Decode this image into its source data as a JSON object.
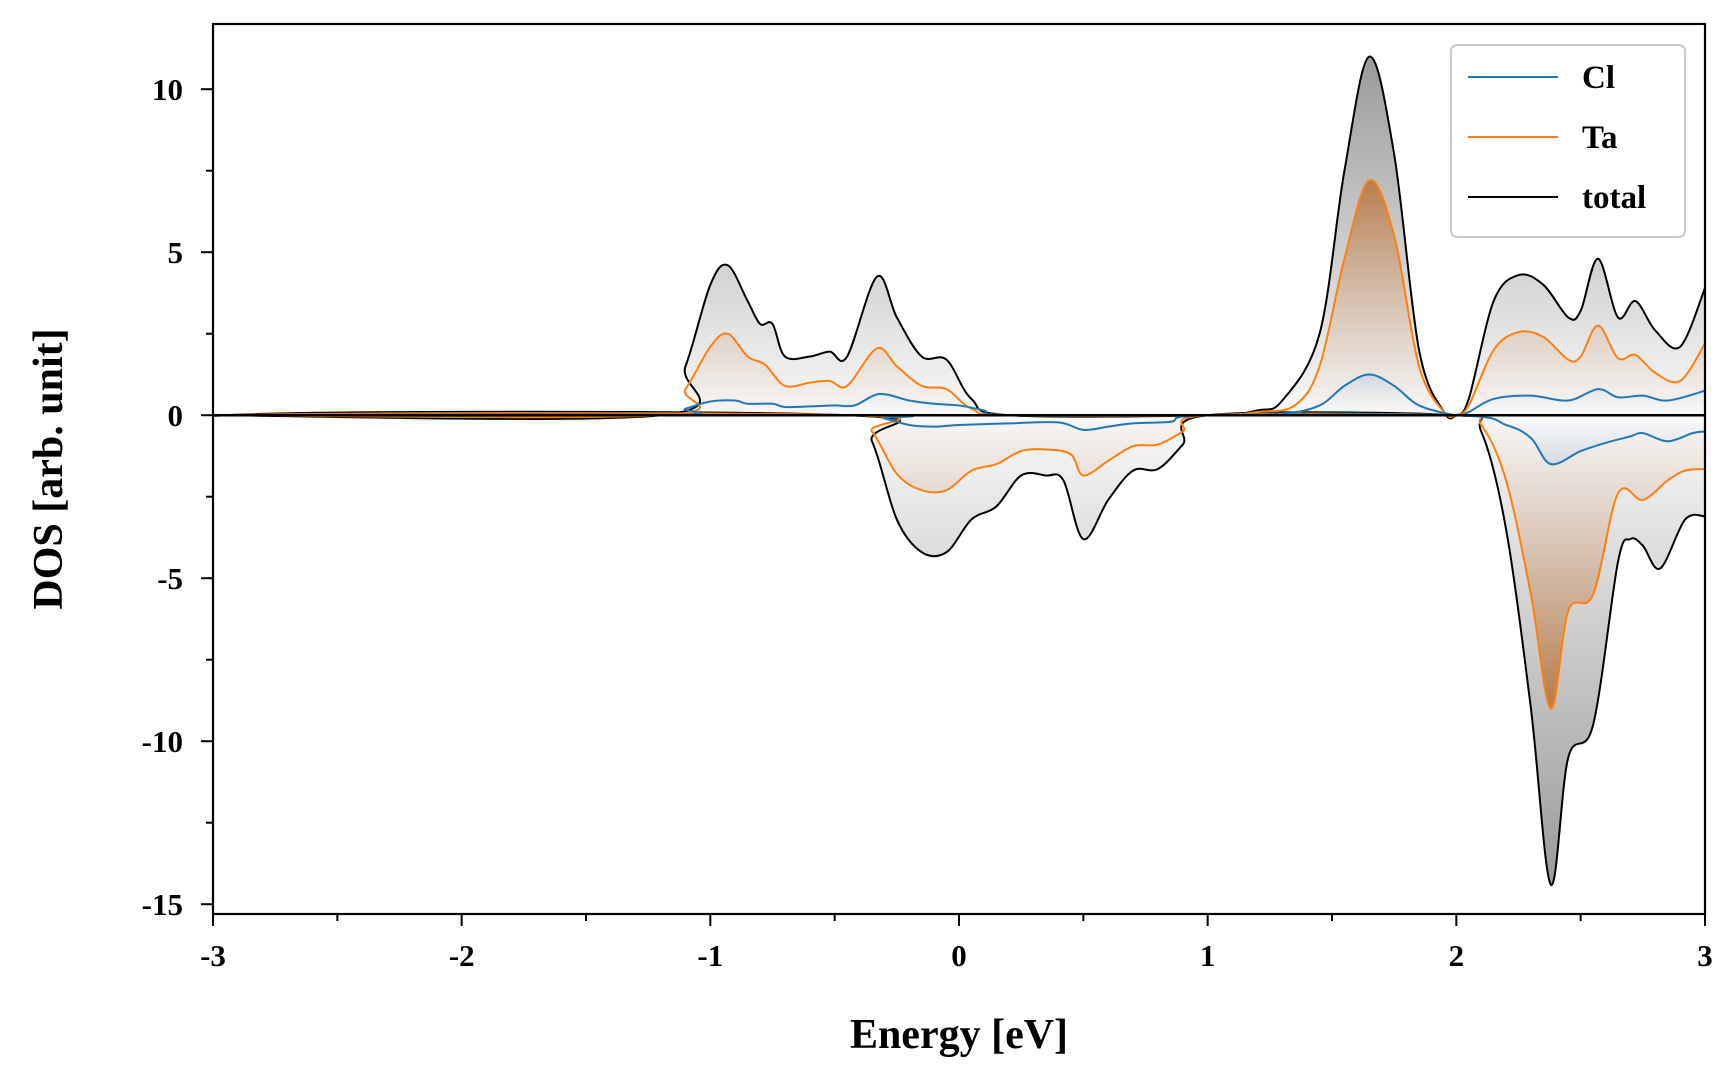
{
  "chart_data": {
    "type": "line",
    "title": "",
    "xlabel": "Energy [eV]",
    "ylabel": "DOS [arb. unit]",
    "xlim": [
      -3,
      3
    ],
    "ylim": [
      -15.3,
      12
    ],
    "x_ticks": [
      -3,
      -2,
      -1,
      0,
      1,
      2,
      3
    ],
    "x_tick_labels": [
      "-3",
      "-2",
      "-1",
      "0",
      "1",
      "2",
      "3"
    ],
    "x_minor_step": 0.5,
    "y_ticks": [
      -15,
      -10,
      -5,
      0,
      5,
      10
    ],
    "y_tick_labels": [
      "-15",
      "-10",
      "-5",
      "0",
      "5",
      "10"
    ],
    "y_minor_step": 2.5,
    "grid": false,
    "legend_position": "top-right",
    "fill": "gradient under spin-up and spin-down curves",
    "series": [
      {
        "name": "Cl",
        "color": "#1f77b4",
        "spin_up": [
          [
            -3,
            0.1
          ],
          [
            -2.95,
            0
          ],
          [
            -1.2,
            0
          ],
          [
            -1.1,
            0.2
          ],
          [
            -1.0,
            0.42
          ],
          [
            -0.9,
            0.45
          ],
          [
            -0.85,
            0.35
          ],
          [
            -0.75,
            0.35
          ],
          [
            -0.7,
            0.25
          ],
          [
            -0.6,
            0.27
          ],
          [
            -0.5,
            0.3
          ],
          [
            -0.42,
            0.3
          ],
          [
            -0.32,
            0.65
          ],
          [
            -0.2,
            0.45
          ],
          [
            -0.1,
            0.35
          ],
          [
            0,
            0.3
          ],
          [
            0.1,
            0.15
          ],
          [
            0.2,
            0
          ],
          [
            1.0,
            0
          ],
          [
            1.3,
            0.05
          ],
          [
            1.45,
            0.3
          ],
          [
            1.55,
            0.9
          ],
          [
            1.65,
            1.25
          ],
          [
            1.75,
            0.9
          ],
          [
            1.85,
            0.3
          ],
          [
            2.0,
            0
          ],
          [
            2.05,
            0.1
          ],
          [
            2.15,
            0.5
          ],
          [
            2.3,
            0.6
          ],
          [
            2.45,
            0.45
          ],
          [
            2.57,
            0.8
          ],
          [
            2.65,
            0.55
          ],
          [
            2.75,
            0.6
          ],
          [
            2.85,
            0.45
          ],
          [
            3.0,
            0.75
          ]
        ],
        "spin_down": [
          [
            -3,
            -0.3
          ],
          [
            -2.95,
            0
          ],
          [
            -0.4,
            0
          ],
          [
            -0.3,
            -0.1
          ],
          [
            -0.2,
            -0.3
          ],
          [
            -0.1,
            -0.35
          ],
          [
            0,
            -0.3
          ],
          [
            0.2,
            -0.25
          ],
          [
            0.4,
            -0.22
          ],
          [
            0.5,
            -0.45
          ],
          [
            0.6,
            -0.35
          ],
          [
            0.7,
            -0.25
          ],
          [
            0.85,
            -0.2
          ],
          [
            1.0,
            0
          ],
          [
            2.0,
            0
          ],
          [
            2.2,
            -0.3
          ],
          [
            2.3,
            -0.7
          ],
          [
            2.38,
            -1.5
          ],
          [
            2.5,
            -1.1
          ],
          [
            2.6,
            -0.85
          ],
          [
            2.7,
            -0.65
          ],
          [
            2.75,
            -0.55
          ],
          [
            2.85,
            -0.8
          ],
          [
            2.95,
            -0.55
          ],
          [
            3.0,
            -0.5
          ]
        ]
      },
      {
        "name": "Ta",
        "color": "#ff7f0e",
        "spin_up": [
          [
            -3,
            0.05
          ],
          [
            -2.95,
            0
          ],
          [
            -1.2,
            0
          ],
          [
            -1.1,
            0.8
          ],
          [
            -1.0,
            2.1
          ],
          [
            -0.93,
            2.5
          ],
          [
            -0.85,
            1.8
          ],
          [
            -0.78,
            1.55
          ],
          [
            -0.7,
            0.9
          ],
          [
            -0.6,
            1.0
          ],
          [
            -0.52,
            1.05
          ],
          [
            -0.45,
            0.9
          ],
          [
            -0.33,
            2.05
          ],
          [
            -0.25,
            1.5
          ],
          [
            -0.15,
            0.9
          ],
          [
            -0.05,
            0.8
          ],
          [
            0.05,
            0.2
          ],
          [
            0.2,
            0
          ],
          [
            1.0,
            0
          ],
          [
            1.2,
            0.1
          ],
          [
            1.35,
            0.3
          ],
          [
            1.45,
            1.5
          ],
          [
            1.55,
            4.8
          ],
          [
            1.65,
            7.2
          ],
          [
            1.75,
            5.5
          ],
          [
            1.85,
            1.5
          ],
          [
            1.95,
            0.1
          ],
          [
            2.0,
            0
          ],
          [
            2.05,
            0.3
          ],
          [
            2.15,
            2.0
          ],
          [
            2.25,
            2.55
          ],
          [
            2.35,
            2.4
          ],
          [
            2.45,
            1.7
          ],
          [
            2.5,
            1.8
          ],
          [
            2.57,
            2.75
          ],
          [
            2.65,
            1.75
          ],
          [
            2.72,
            1.85
          ],
          [
            2.8,
            1.3
          ],
          [
            2.9,
            1.05
          ],
          [
            3.0,
            2.2
          ]
        ],
        "spin_down": [
          [
            -3,
            -0.5
          ],
          [
            -2.95,
            0
          ],
          [
            -0.45,
            0
          ],
          [
            -0.35,
            -0.5
          ],
          [
            -0.25,
            -1.8
          ],
          [
            -0.15,
            -2.3
          ],
          [
            -0.05,
            -2.3
          ],
          [
            0.05,
            -1.7
          ],
          [
            0.15,
            -1.5
          ],
          [
            0.25,
            -1.1
          ],
          [
            0.35,
            -1.05
          ],
          [
            0.45,
            -1.2
          ],
          [
            0.5,
            -1.85
          ],
          [
            0.6,
            -1.4
          ],
          [
            0.7,
            -0.95
          ],
          [
            0.8,
            -0.9
          ],
          [
            0.9,
            -0.5
          ],
          [
            1.0,
            0
          ],
          [
            2.0,
            0
          ],
          [
            2.1,
            -0.3
          ],
          [
            2.2,
            -2.0
          ],
          [
            2.3,
            -5.5
          ],
          [
            2.38,
            -9.0
          ],
          [
            2.45,
            -6.0
          ],
          [
            2.55,
            -5.5
          ],
          [
            2.65,
            -2.4
          ],
          [
            2.75,
            -2.6
          ],
          [
            2.85,
            -2.0
          ],
          [
            2.92,
            -1.7
          ],
          [
            3.0,
            -1.65
          ]
        ]
      },
      {
        "name": "total",
        "color": "#000000",
        "spin_up": [
          [
            -3,
            0.1
          ],
          [
            -2.95,
            0
          ],
          [
            -1.2,
            0
          ],
          [
            -1.1,
            1.5
          ],
          [
            -1.0,
            4.0
          ],
          [
            -0.93,
            4.6
          ],
          [
            -0.85,
            3.5
          ],
          [
            -0.8,
            2.8
          ],
          [
            -0.75,
            2.8
          ],
          [
            -0.7,
            1.8
          ],
          [
            -0.6,
            1.8
          ],
          [
            -0.52,
            1.95
          ],
          [
            -0.45,
            1.8
          ],
          [
            -0.33,
            4.25
          ],
          [
            -0.25,
            3.0
          ],
          [
            -0.15,
            1.8
          ],
          [
            -0.05,
            1.7
          ],
          [
            0.05,
            0.5
          ],
          [
            0.2,
            0
          ],
          [
            1.0,
            0
          ],
          [
            1.2,
            0.15
          ],
          [
            1.3,
            0.45
          ],
          [
            1.45,
            2.5
          ],
          [
            1.55,
            7.5
          ],
          [
            1.65,
            11.0
          ],
          [
            1.75,
            8.0
          ],
          [
            1.85,
            2.0
          ],
          [
            1.95,
            0.1
          ],
          [
            2.0,
            0
          ],
          [
            2.05,
            0.5
          ],
          [
            2.15,
            3.5
          ],
          [
            2.25,
            4.3
          ],
          [
            2.35,
            4.0
          ],
          [
            2.45,
            3.0
          ],
          [
            2.5,
            3.2
          ],
          [
            2.57,
            4.8
          ],
          [
            2.65,
            3.0
          ],
          [
            2.72,
            3.5
          ],
          [
            2.8,
            2.6
          ],
          [
            2.9,
            2.1
          ],
          [
            3.0,
            3.9
          ]
        ],
        "spin_down": [
          [
            -3,
            -0.9
          ],
          [
            -2.95,
            0
          ],
          [
            -0.45,
            0
          ],
          [
            -0.35,
            -0.8
          ],
          [
            -0.25,
            -3.2
          ],
          [
            -0.15,
            -4.2
          ],
          [
            -0.05,
            -4.2
          ],
          [
            0.05,
            -3.2
          ],
          [
            0.15,
            -2.8
          ],
          [
            0.25,
            -1.85
          ],
          [
            0.35,
            -1.85
          ],
          [
            0.42,
            -2.0
          ],
          [
            0.5,
            -3.8
          ],
          [
            0.6,
            -2.6
          ],
          [
            0.7,
            -1.7
          ],
          [
            0.8,
            -1.65
          ],
          [
            0.9,
            -0.9
          ],
          [
            1.0,
            0
          ],
          [
            2.0,
            0
          ],
          [
            2.1,
            -0.5
          ],
          [
            2.2,
            -3.5
          ],
          [
            2.3,
            -9.0
          ],
          [
            2.38,
            -14.4
          ],
          [
            2.45,
            -10.5
          ],
          [
            2.55,
            -9.5
          ],
          [
            2.65,
            -4.5
          ],
          [
            2.7,
            -3.8
          ],
          [
            2.75,
            -4.0
          ],
          [
            2.82,
            -4.7
          ],
          [
            2.92,
            -3.2
          ],
          [
            3.0,
            -3.1
          ]
        ]
      }
    ]
  }
}
